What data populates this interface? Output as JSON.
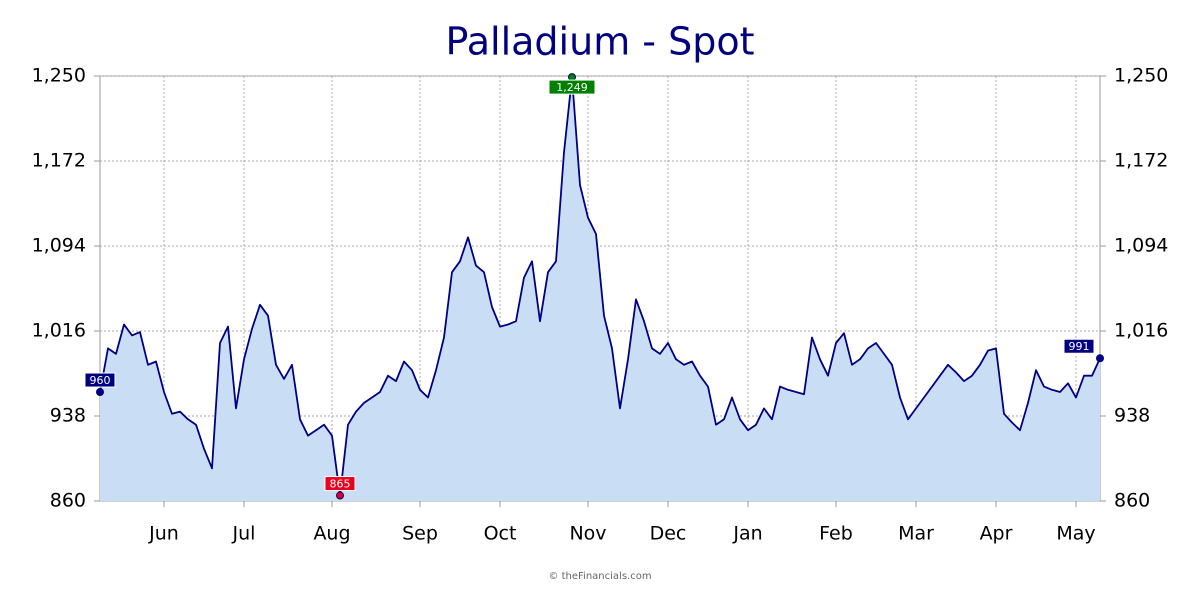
{
  "chart_data": {
    "type": "area",
    "title": "Palladium - Spot",
    "credit": "© theFinancials.com",
    "color": "#000080",
    "area_color": "#c9def5",
    "max_color": "#008000",
    "min_color": "#e8001c",
    "grid": true,
    "ylim": [
      860,
      1250
    ],
    "yticks": [
      860,
      938,
      {
        "value": 1016,
        "label": "1,016"
      },
      {
        "value": 1094,
        "label": "1,094"
      },
      {
        "value": 1172,
        "label": "1,172"
      },
      {
        "value": 1250,
        "label": "1,250"
      }
    ],
    "categories": [
      null,
      null,
      null,
      null,
      null,
      null,
      null,
      null,
      "Jun",
      null,
      null,
      null,
      null,
      null,
      null,
      null,
      null,
      null,
      "Jul",
      null,
      null,
      null,
      null,
      null,
      null,
      null,
      null,
      null,
      null,
      "Aug",
      null,
      null,
      null,
      null,
      null,
      null,
      null,
      null,
      null,
      null,
      "Sep",
      null,
      null,
      null,
      null,
      null,
      null,
      null,
      null,
      null,
      "Oct",
      null,
      null,
      null,
      null,
      null,
      null,
      null,
      null,
      null,
      null,
      "Nov",
      null,
      null,
      null,
      null,
      null,
      null,
      null,
      null,
      null,
      "Dec",
      null,
      null,
      null,
      null,
      null,
      null,
      null,
      null,
      null,
      "Jan",
      null,
      null,
      null,
      null,
      null,
      null,
      null,
      null,
      null,
      null,
      "Feb",
      null,
      null,
      null,
      null,
      null,
      null,
      null,
      null,
      null,
      "Mar",
      null,
      null,
      null,
      null,
      null,
      null,
      null,
      null,
      null,
      "Apr",
      null,
      null,
      null,
      null,
      null,
      null,
      null,
      null,
      null,
      "May",
      null,
      null,
      null
    ],
    "values": [
      960,
      1000,
      995,
      1022,
      1012,
      1015,
      985,
      988,
      960,
      940,
      942,
      935,
      930,
      908,
      890,
      1005,
      1020,
      945,
      990,
      1018,
      1040,
      1030,
      985,
      972,
      985,
      935,
      920,
      925,
      930,
      920,
      865,
      930,
      942,
      950,
      955,
      960,
      975,
      970,
      988,
      980,
      962,
      955,
      980,
      1010,
      1070,
      1080,
      1102,
      1076,
      1070,
      1038,
      1020,
      1022,
      1025,
      1065,
      1080,
      1025,
      1070,
      1080,
      1180,
      1249,
      1150,
      1120,
      1105,
      1030,
      1000,
      945,
      990,
      1045,
      1025,
      1000,
      995,
      1005,
      990,
      985,
      988,
      975,
      965,
      930,
      935,
      955,
      935,
      925,
      930,
      945,
      935,
      965,
      962,
      960,
      958,
      1010,
      990,
      975,
      1005,
      1014,
      985,
      990,
      1000,
      1005,
      995,
      985,
      955,
      935,
      945,
      955,
      965,
      975,
      985,
      978,
      970,
      975,
      985,
      998,
      1000,
      940,
      932,
      925,
      950,
      980,
      965,
      962,
      960,
      968,
      955,
      975,
      975,
      991
    ],
    "value_labels": [
      "960",
      null,
      null,
      null,
      null,
      null,
      null,
      null,
      null,
      null,
      null,
      null,
      null,
      null,
      null,
      null,
      null,
      null,
      null,
      null,
      null,
      null,
      null,
      null,
      null,
      null,
      null,
      null,
      null,
      null,
      "865",
      null,
      null,
      null,
      null,
      null,
      null,
      null,
      null,
      null,
      null,
      null,
      null,
      null,
      null,
      null,
      null,
      null,
      null,
      null,
      null,
      null,
      null,
      null,
      null,
      null,
      null,
      null,
      null,
      "1,249",
      null,
      null,
      null,
      null,
      null,
      null,
      null,
      null,
      null,
      null,
      null,
      null,
      null,
      null,
      null,
      null,
      null,
      null,
      null,
      null,
      null,
      null,
      null,
      null,
      null,
      null,
      null,
      null,
      null,
      null,
      null,
      null,
      null,
      null,
      null,
      null,
      null,
      null,
      null,
      null,
      null,
      null,
      null,
      null,
      null,
      null,
      null,
      null,
      null,
      null,
      null,
      null,
      null,
      null,
      null,
      null,
      null,
      null,
      null,
      null,
      null,
      null,
      null,
      null,
      null,
      "991"
    ]
  }
}
